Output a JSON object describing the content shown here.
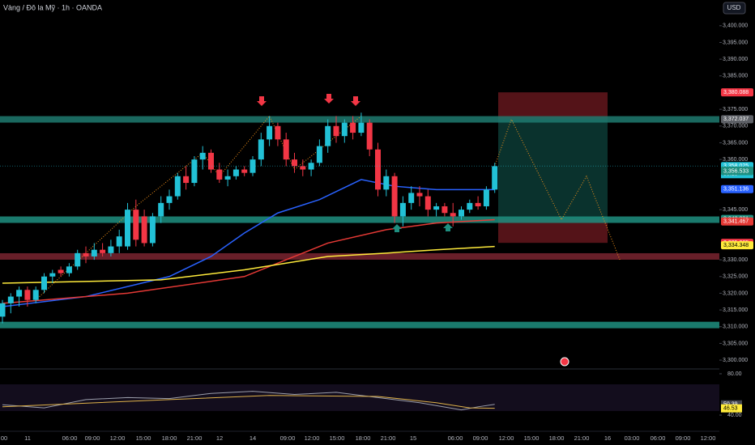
{
  "chart_data": {
    "type": "candlestick",
    "title": "Vàng / Đô la Mỹ · 1h · OANDA",
    "currency": "USD",
    "up_color": "#22c1d6",
    "down_color": "#f23645",
    "ylim": [
      3297.6,
      3407.7
    ],
    "yticks": [
      {
        "value": 3300,
        "label": "3,300.000"
      },
      {
        "value": 3305,
        "label": "3,305.000"
      },
      {
        "value": 3310,
        "label": "3,310.000"
      },
      {
        "value": 3315,
        "label": "3,315.000"
      },
      {
        "value": 3320,
        "label": "3,320.000"
      },
      {
        "value": 3325,
        "label": "3,325.000"
      },
      {
        "value": 3330,
        "label": "3,330.000"
      },
      {
        "value": 3345,
        "label": "3,345.000"
      },
      {
        "value": 3360,
        "label": "3,360.000"
      },
      {
        "value": 3365,
        "label": "3,365.000"
      },
      {
        "value": 3370,
        "label": "3,370.000"
      },
      {
        "value": 3375,
        "label": "3,375.000"
      },
      {
        "value": 3385,
        "label": "3,385.000"
      },
      {
        "value": 3390,
        "label": "3,390.000"
      },
      {
        "value": 3395,
        "label": "3,395.000"
      },
      {
        "value": 3400,
        "label": "3,400.000"
      }
    ],
    "x_labels": [
      "00",
      "11",
      "06:00",
      "09:00",
      "12:00",
      "15:00",
      "18:00",
      "21:00",
      "12",
      "14",
      "09:00",
      "12:00",
      "15:00",
      "18:00",
      "21:00",
      "15",
      "06:00",
      "09:00",
      "12:00",
      "15:00",
      "18:00",
      "21:00",
      "16",
      "03:00",
      "06:00",
      "09:00",
      "12:00"
    ],
    "candles": {
      "open": [
        3313,
        3317,
        3319,
        3321,
        3318,
        3321,
        3325,
        3327,
        3326,
        3328,
        3332,
        3331,
        3333,
        3332,
        3334,
        3334,
        3345,
        3343,
        3335,
        3343,
        3347,
        3349,
        3355,
        3353,
        3360,
        3362,
        3357,
        3354,
        3355,
        3357,
        3356,
        3360,
        3366,
        3370,
        3366,
        3360,
        3358,
        3357,
        3359,
        3364,
        3370,
        3367,
        3371,
        3368,
        3371,
        3363,
        3351,
        3355,
        3343,
        3347,
        3350,
        3349,
        3345,
        3346,
        3344,
        3343,
        3345,
        3347,
        3346,
        3351
      ],
      "high": [
        3318,
        3320,
        3322,
        3322,
        3322,
        3326,
        3327,
        3328,
        3329,
        3333,
        3334,
        3335,
        3335,
        3336,
        3339,
        3347,
        3348,
        3345,
        3344,
        3349,
        3351,
        3356,
        3358,
        3361,
        3364,
        3363,
        3359,
        3357,
        3358,
        3358,
        3361,
        3368,
        3373,
        3371,
        3368,
        3362,
        3360,
        3360,
        3366,
        3372,
        3373,
        3372,
        3373,
        3374,
        3372,
        3365,
        3357,
        3356,
        3349,
        3352,
        3352,
        3351,
        3347,
        3347,
        3347,
        3346,
        3348,
        3349,
        3352,
        3359
      ],
      "low": [
        3311,
        3314,
        3316,
        3316,
        3317,
        3320,
        3323,
        3325,
        3325,
        3327,
        3329,
        3330,
        3331,
        3331,
        3332,
        3333,
        3334,
        3334,
        3334,
        3341,
        3345,
        3348,
        3351,
        3352,
        3357,
        3356,
        3353,
        3352,
        3354,
        3355,
        3355,
        3358,
        3364,
        3364,
        3358,
        3356,
        3355,
        3355,
        3358,
        3362,
        3365,
        3365,
        3366,
        3367,
        3361,
        3349,
        3349,
        3341,
        3340,
        3345,
        3346,
        3343,
        3343,
        3343,
        3340,
        3342,
        3344,
        3345,
        3345,
        3350
      ],
      "close": [
        3317,
        3319,
        3321,
        3318,
        3321,
        3325,
        3326,
        3326,
        3328,
        3332,
        3331,
        3333,
        3332,
        3334,
        3337,
        3345,
        3336,
        3335,
        3343,
        3347,
        3349,
        3355,
        3353,
        3360,
        3362,
        3357,
        3354,
        3355,
        3357,
        3356,
        3360,
        3366,
        3370,
        3366,
        3360,
        3358,
        3357,
        3359,
        3364,
        3370,
        3367,
        3371,
        3368,
        3371,
        3363,
        3351,
        3355,
        3343,
        3347,
        3350,
        3349,
        3345,
        3346,
        3344,
        3343,
        3345,
        3347,
        3346,
        3351,
        3358
      ]
    },
    "lines": [
      {
        "color": "#2962ff",
        "x": [
          0,
          10,
          20,
          25,
          29,
          33,
          38,
          43,
          47,
          52,
          59
        ],
        "values": [
          3316,
          3319,
          3325,
          3331,
          3338,
          3344,
          3348,
          3354,
          3352,
          3351,
          3351
        ]
      },
      {
        "color": "#e53935",
        "x": [
          0,
          15,
          29,
          34,
          39,
          46,
          52,
          59
        ],
        "values": [
          3317,
          3320,
          3325,
          3330,
          3335,
          3339,
          3341,
          3342
        ]
      },
      {
        "color": "#ffeb3b",
        "x": [
          0,
          19,
          29,
          39,
          46,
          52,
          59
        ],
        "values": [
          3323,
          3324,
          3327,
          3331,
          3332,
          3333,
          3334
        ]
      }
    ],
    "levels": [
      {
        "value": 3372,
        "color": "#1e7a70"
      },
      {
        "value": 3342,
        "color": "#1e8f80"
      },
      {
        "value": 3331,
        "color": "#7a2430"
      },
      {
        "value": 3310.5,
        "color": "#1e8f80"
      }
    ],
    "projection": {
      "color": "#f7931a",
      "x": [
        59,
        61,
        67,
        70,
        74
      ],
      "values": [
        3358,
        3372,
        3342,
        3355,
        3330
      ]
    },
    "pattern": {
      "color": "#f7931a",
      "x": [
        4,
        16,
        24,
        26,
        32,
        35,
        43
      ],
      "values": [
        3318,
        3346,
        3362,
        3355,
        3373,
        3357,
        3373
      ]
    },
    "price_labels": [
      {
        "value": 3380.088,
        "label": "3,380.088",
        "color": "#f23645"
      },
      {
        "value": 3372.037,
        "label": "3,372.037",
        "color": "#5d6066"
      },
      {
        "value": 3358.025,
        "label": "3,358.025",
        "color": "#22c1d6"
      },
      {
        "value": 3356.682,
        "label": "3,356.682",
        "color": "#1e8f80"
      },
      {
        "value": 3356.533,
        "label": "3,356.533",
        "color": "#1e8f80"
      },
      {
        "value": 3351.136,
        "label": "3,351.136",
        "color": "#2962ff"
      },
      {
        "value": 3342.221,
        "label": "3,342.221",
        "color": "#1e8f80"
      },
      {
        "value": 3341.467,
        "label": "3,341.467",
        "color": "#e53935"
      },
      {
        "value": 3335.065,
        "label": "3,335.065",
        "color": "#f23645"
      },
      {
        "value": 3334.348,
        "label": "3,334.348",
        "color": "#ffeb3b"
      }
    ],
    "countdown": "55:15",
    "rsi": {
      "ylim": [
        26.7,
        83.1
      ],
      "yticks": [
        {
          "value": 80,
          "label": "80.00"
        },
        {
          "value": 40,
          "label": "40.00"
        }
      ],
      "x": [
        0,
        5,
        10,
        15,
        20,
        25,
        30,
        35,
        40,
        45,
        50,
        55,
        57,
        59
      ],
      "values": [
        50,
        47,
        55,
        57,
        56,
        61,
        63,
        60,
        62,
        57,
        52,
        45,
        48,
        50.39
      ],
      "value_label": "50.39",
      "ma_x": [
        0,
        20,
        32,
        45,
        52,
        56,
        59
      ],
      "ma_values": [
        48,
        55,
        59,
        58,
        52,
        47,
        46.53
      ],
      "ma_value_label": "46.53"
    }
  }
}
